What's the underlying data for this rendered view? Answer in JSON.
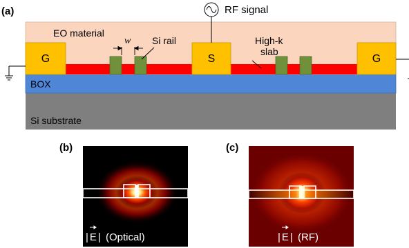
{
  "panels": {
    "a": "(a)",
    "b": "(b)",
    "c": "(c)"
  },
  "labels": {
    "rf_signal": "RF signal",
    "eo_material": "EO material",
    "width_symbol": "w",
    "si_rail": "Si rail",
    "high_k_line1": "High-k",
    "high_k_line2": "slab",
    "box": "BOX",
    "substrate": "Si substrate",
    "electrode_ground": "G",
    "electrode_signal": "S",
    "field_optical_suffix": "(Optical)",
    "field_rf_suffix": "(RF)",
    "field_symbol": "E"
  },
  "colors": {
    "eo_material": "#fbd5be",
    "electrode": "#ffc000",
    "high_k_slab": "#ff0000",
    "si_rail": "#70903a",
    "box": "#4f86d6",
    "substrate": "#7f7f7f",
    "field_bg_optical": "#000000",
    "field_bg_rf": "#6a0000"
  }
}
